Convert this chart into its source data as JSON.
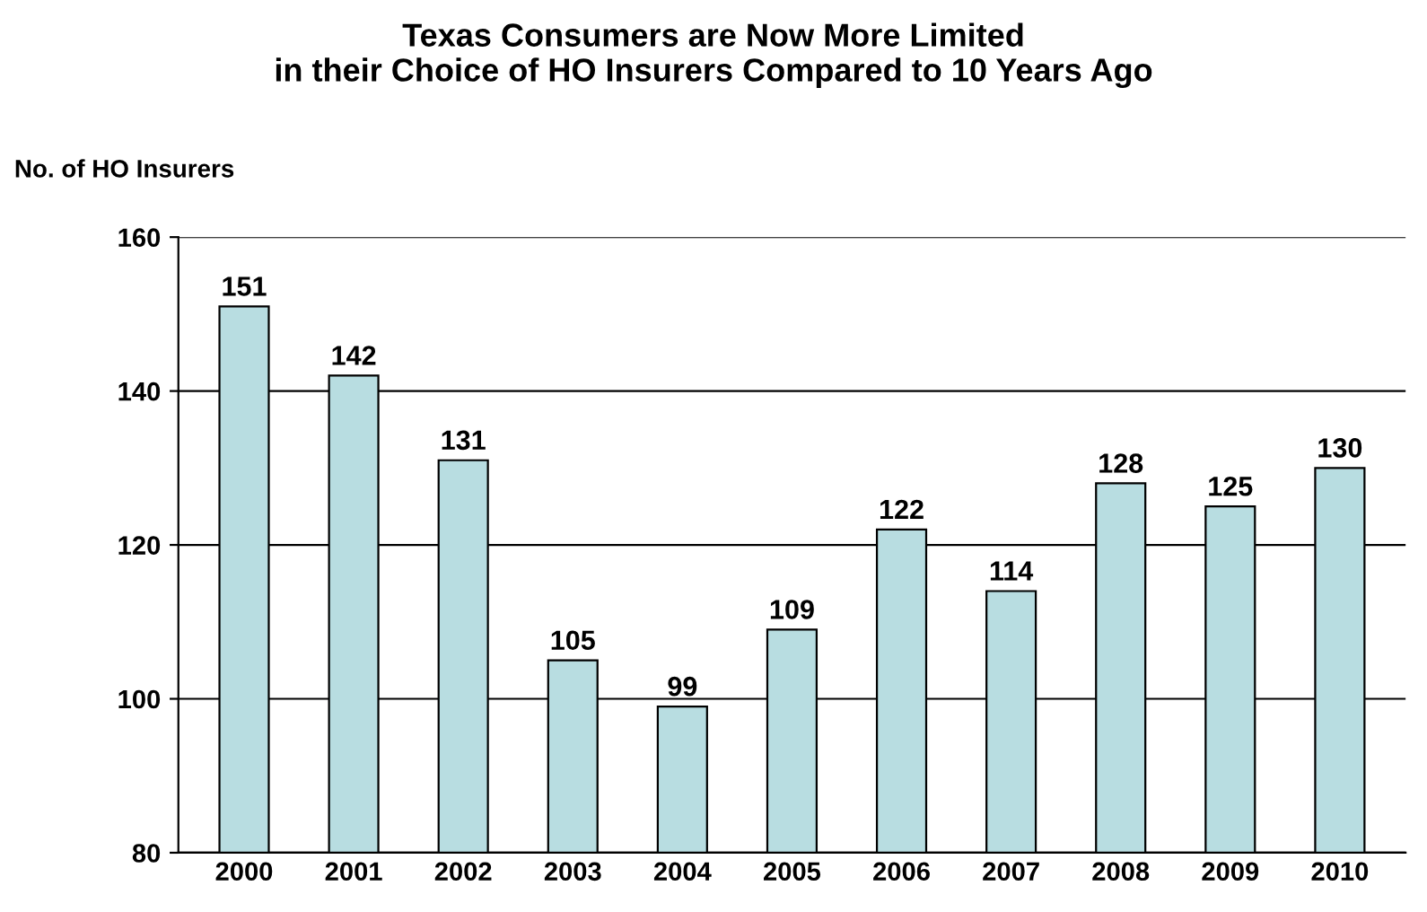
{
  "chart_data": {
    "type": "bar",
    "title": "Texas Consumers are Now More Limited\nin their Choice of HO Insurers Compared to 10 Years Ago",
    "ylabel": "No. of HO Insurers",
    "categories": [
      "2000",
      "2001",
      "2002",
      "2003",
      "2004",
      "2005",
      "2006",
      "2007",
      "2008",
      "2009",
      "2010"
    ],
    "values": [
      151,
      142,
      131,
      105,
      99,
      109,
      122,
      114,
      128,
      125,
      130
    ],
    "color": "#b8dde1",
    "ylim": [
      80,
      160
    ],
    "yticks": [
      80,
      100,
      120,
      140,
      160
    ],
    "grid": "y",
    "data_labels": true
  }
}
